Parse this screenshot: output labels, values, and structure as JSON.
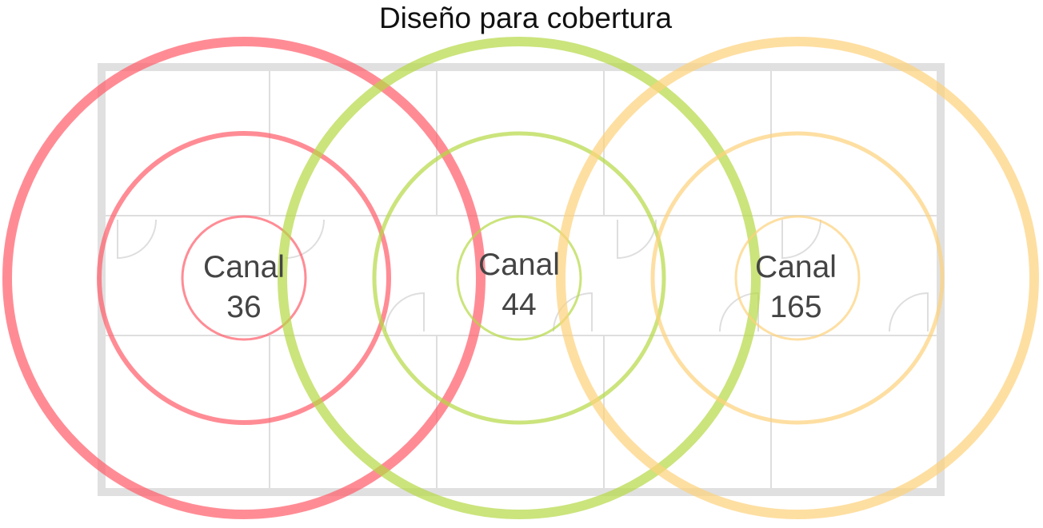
{
  "title": "Diseño para cobertura",
  "access_points": [
    {
      "lines": [
        "Canal",
        "36"
      ]
    },
    {
      "lines": [
        "Canal",
        "44"
      ]
    },
    {
      "lines": [
        "Canal",
        "165"
      ]
    }
  ]
}
